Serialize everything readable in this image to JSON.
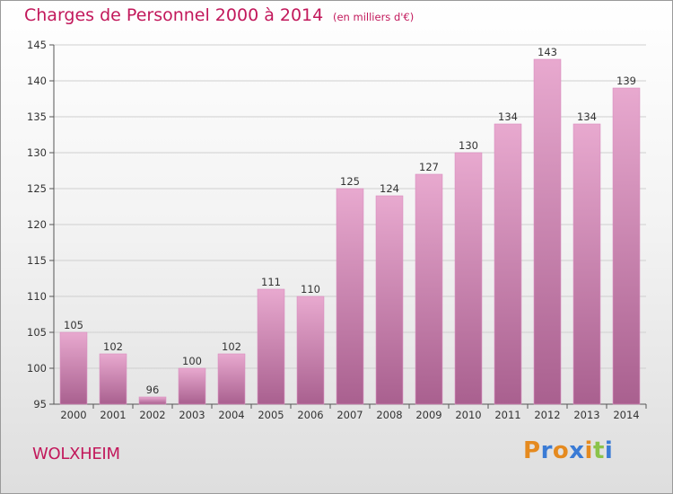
{
  "header": {
    "title": "Charges de Personnel 2000 à 2014",
    "unit": "(en milliers d'€)"
  },
  "footer": {
    "commune": "WOLXHEIM",
    "brand_letters": [
      "P",
      "r",
      "o",
      "x",
      "i",
      "t",
      "i"
    ],
    "brand_colors": [
      "#e58a1f",
      "#3a7bd5",
      "#e58a1f",
      "#3a7bd5",
      "#e58a1f",
      "#8bc34a",
      "#3a7bd5"
    ]
  },
  "colors": {
    "accent": "#c2185b",
    "bar_top": "#e8a9cf",
    "bar_bottom": "#a9608f",
    "grid": "#cfcfcf"
  },
  "chart_data": {
    "type": "bar",
    "title": "Charges de Personnel 2000 à 2014",
    "subtitle": "(en milliers d'€)",
    "categories": [
      "2000",
      "2001",
      "2002",
      "2003",
      "2004",
      "2005",
      "2006",
      "2007",
      "2008",
      "2009",
      "2010",
      "2011",
      "2012",
      "2013",
      "2014"
    ],
    "values": [
      105,
      102,
      96,
      100,
      102,
      111,
      110,
      125,
      124,
      127,
      130,
      134,
      143,
      134,
      139
    ],
    "ylim": [
      95,
      145
    ],
    "yticks": [
      95,
      100,
      105,
      110,
      115,
      120,
      125,
      130,
      135,
      140,
      145
    ],
    "grid": true
  }
}
